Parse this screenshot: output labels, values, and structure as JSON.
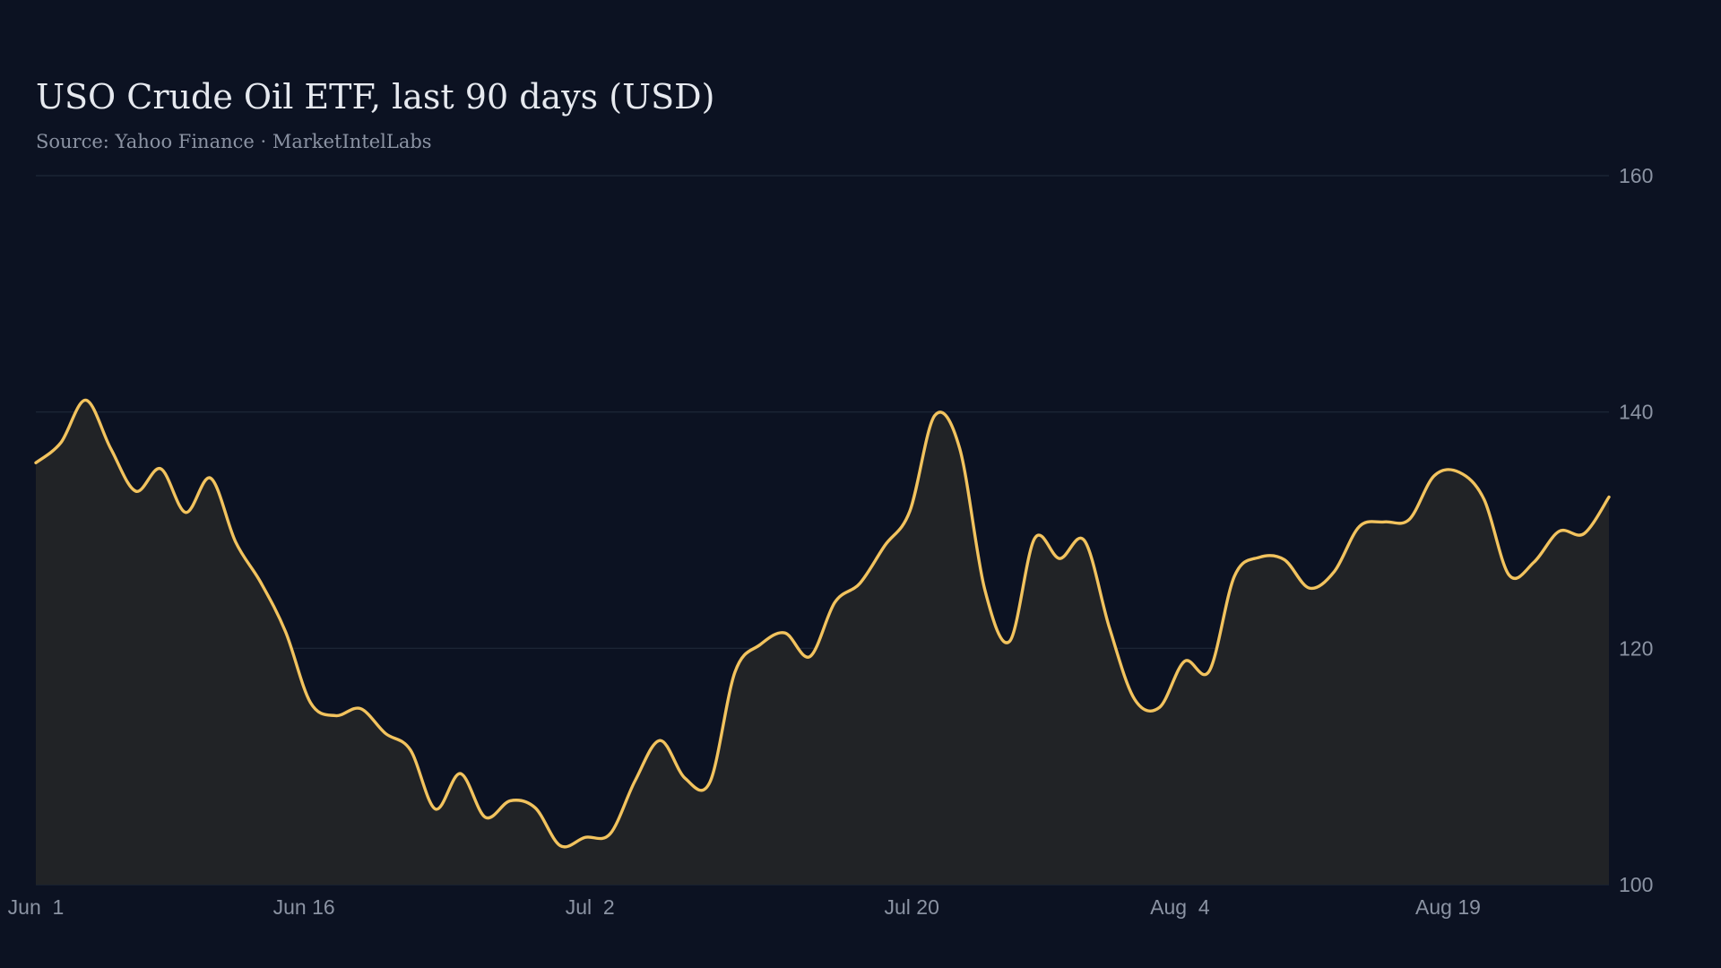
{
  "chart_data": {
    "type": "area",
    "title": "USO Crude Oil ETF, last 90 days (USD)",
    "subtitle": "Source: Yahoo Finance · MarketIntelLabs",
    "xlabel": "",
    "ylabel": "",
    "ylim": [
      100,
      160
    ],
    "yticks": [
      100,
      120,
      140,
      160
    ],
    "y_axis_position": "right",
    "grid": true,
    "legend": "none",
    "x_tick_labels": [
      {
        "label": "Jun  1",
        "index": 0
      },
      {
        "label": "Jun 16",
        "index": 15
      },
      {
        "label": "Jul  2",
        "index": 31
      },
      {
        "label": "Jul 20",
        "index": 49
      },
      {
        "label": "Aug  4",
        "index": 64
      },
      {
        "label": "Aug 19",
        "index": 79
      }
    ],
    "x_start": "Jun 1",
    "series": [
      {
        "values": [
          135.7,
          137.4,
          141.0,
          136.9,
          133.3,
          135.2,
          131.5,
          134.4,
          129.0,
          125.6,
          121.4,
          115.4,
          114.3,
          114.9,
          112.8,
          111.4,
          106.4,
          109.4,
          105.7,
          107.1,
          106.5,
          103.3,
          104.0,
          104.3,
          108.8,
          112.2,
          109.0,
          108.7,
          118.0,
          120.3,
          121.3,
          119.3,
          123.9,
          125.5,
          128.7,
          131.6,
          139.7,
          136.9,
          125.0,
          120.6,
          129.3,
          127.6,
          129.1,
          121.7,
          115.7,
          115.0,
          118.9,
          118.1,
          126.1,
          127.7,
          127.5,
          125.1,
          126.5,
          130.3,
          130.7,
          130.9,
          134.6,
          134.9,
          132.6,
          126.2,
          127.3,
          129.9,
          129.7,
          132.8
        ]
      }
    ],
    "colors": {
      "background": "#0c1222",
      "line": "#f2c35e",
      "area_fill": "#212326",
      "grid": "#1e2838",
      "tick_text": "#8b93a3",
      "title_text": "#e6e9ef"
    }
  }
}
